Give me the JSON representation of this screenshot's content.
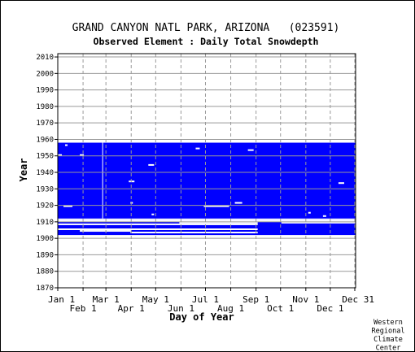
{
  "chart_data": {
    "type": "heatmap",
    "title": "GRAND CANYON NATL PARK, ARIZONA   (023591)",
    "subtitle": "Observed Element : Daily Total Snowdepth",
    "xlabel": "Day of Year",
    "ylabel": "Year",
    "x_range": [
      1,
      366
    ],
    "ylim": [
      1870,
      2012
    ],
    "y_ticks": [
      1870,
      1880,
      1890,
      1900,
      1910,
      1920,
      1930,
      1940,
      1950,
      1960,
      1970,
      1980,
      1990,
      2000,
      2010
    ],
    "x_ticks_top": [
      {
        "label": "Jan 1",
        "day": 1
      },
      {
        "label": "Mar 1",
        "day": 60
      },
      {
        "label": "May 1",
        "day": 121
      },
      {
        "label": "Jul 1",
        "day": 182
      },
      {
        "label": "Sep 1",
        "day": 244
      },
      {
        "label": "Nov 1",
        "day": 305
      },
      {
        "label": "Dec 31",
        "day": 365
      }
    ],
    "x_ticks_bottom": [
      {
        "label": "Feb 1",
        "day": 32
      },
      {
        "label": "Apr 1",
        "day": 91
      },
      {
        "label": "Jun 1",
        "day": 152
      },
      {
        "label": "Aug 1",
        "day": 213
      },
      {
        "label": "Oct 1",
        "day": 274
      },
      {
        "label": "Dec 1",
        "day": 335
      }
    ],
    "grid": true,
    "data_color": "#0000ff",
    "data_period": {
      "year_start": 1902,
      "year_end": 1957,
      "day_start": 1,
      "day_end": 365
    },
    "missing_segments": [
      {
        "year": 1911,
        "day_start": 1,
        "day_end": 365
      },
      {
        "year": 1910,
        "day_start": 1,
        "day_end": 365
      },
      {
        "year": 1909,
        "day_start": 150,
        "day_end": 245
      },
      {
        "year": 1909,
        "day_start": 275,
        "day_end": 365
      },
      {
        "year": 1908,
        "day_start": 1,
        "day_end": 245
      },
      {
        "year": 1905,
        "day_start": 1,
        "day_end": 245
      },
      {
        "year": 1904,
        "day_start": 28,
        "day_end": 90
      },
      {
        "year": 1903,
        "day_start": 90,
        "day_end": 245
      },
      {
        "year": 1919,
        "day_start": 180,
        "day_end": 210
      },
      {
        "year": 1921,
        "day_start": 218,
        "day_end": 226
      },
      {
        "year": 1919,
        "day_start": 8,
        "day_end": 18
      },
      {
        "year": 1934,
        "day_start": 88,
        "day_end": 94
      },
      {
        "year": 1944,
        "day_start": 112,
        "day_end": 118
      },
      {
        "year": 1950,
        "day_start": 1,
        "day_end": 5
      },
      {
        "year": 1950,
        "day_start": 28,
        "day_end": 32
      },
      {
        "year": 1954,
        "day_start": 170,
        "day_end": 174
      },
      {
        "year": 1953,
        "day_start": 234,
        "day_end": 240
      },
      {
        "year": 1956,
        "day_start": 10,
        "day_end": 12
      },
      {
        "year": 1933,
        "day_start": 345,
        "day_end": 351
      },
      {
        "year": 1913,
        "day_start": 326,
        "day_end": 329
      },
      {
        "year": 1915,
        "day_start": 308,
        "day_end": 310
      },
      {
        "year": 1914,
        "day_start": 116,
        "day_end": 118
      },
      {
        "year": 1921,
        "day_start": 90,
        "day_end": 92
      }
    ],
    "missing_columns": [
      {
        "day": 56,
        "year_start": 1912,
        "year_end": 1957
      }
    ]
  },
  "footer": {
    "credit_lines": [
      "Western",
      "Regional",
      "Climate",
      "Center"
    ]
  }
}
